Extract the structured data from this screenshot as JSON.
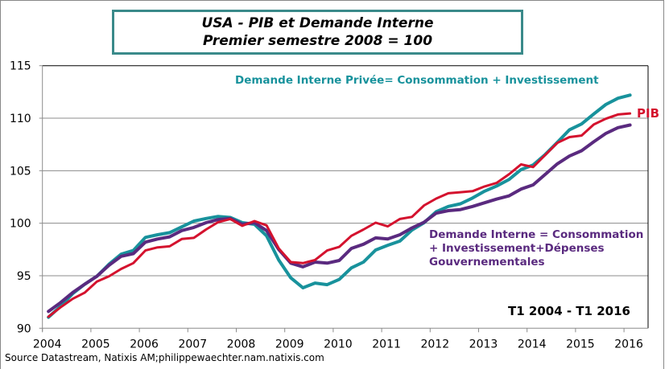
{
  "chart_data": {
    "type": "line",
    "title": [
      "USA - PIB et Demande Interne",
      "Premier semestre 2008 = 100"
    ],
    "xlabel": "",
    "ylabel": "",
    "x_ticks": [
      "2004",
      "2005",
      "2006",
      "2007",
      "2008",
      "2009",
      "2010",
      "2011",
      "2012",
      "2013",
      "2014",
      "2015",
      "2016"
    ],
    "y_ticks": [
      "90",
      "95",
      "100",
      "105",
      "110",
      "115"
    ],
    "ylim": [
      90,
      115
    ],
    "xlim": [
      2004,
      2016.5
    ],
    "grid": "horizontal",
    "period": "T1 2004 - T1 2016",
    "frequency": "quarterly",
    "series": [
      {
        "name": "Demande  Interne Privée=  Consommation  +  Investissement",
        "color": "#18929c",
        "values": [
          91.05,
          92.1,
          93.3,
          94.2,
          94.95,
          96.1,
          97.05,
          97.4,
          98.65,
          98.9,
          99.1,
          99.65,
          100.2,
          100.45,
          100.65,
          100.55,
          100.05,
          99.9,
          98.8,
          96.5,
          94.8,
          93.85,
          94.3,
          94.15,
          94.65,
          95.75,
          96.3,
          97.45,
          97.9,
          98.3,
          99.35,
          100.05,
          101.1,
          101.6,
          101.85,
          102.4,
          103.05,
          103.55,
          104.15,
          105.1,
          105.55,
          106.55,
          107.7,
          108.9,
          109.45,
          110.4,
          111.3,
          111.9,
          112.2
        ]
      },
      {
        "name": "PIB",
        "color": "#d4122e",
        "values": [
          91.1,
          92.0,
          92.8,
          93.4,
          94.45,
          94.95,
          95.65,
          96.2,
          97.4,
          97.7,
          97.8,
          98.5,
          98.6,
          99.4,
          100.1,
          100.4,
          99.75,
          100.2,
          99.8,
          97.6,
          96.3,
          96.2,
          96.5,
          97.4,
          97.75,
          98.8,
          99.4,
          100.05,
          99.7,
          100.4,
          100.6,
          101.7,
          102.35,
          102.85,
          102.95,
          103.05,
          103.5,
          103.85,
          104.65,
          105.6,
          105.35,
          106.5,
          107.65,
          108.2,
          108.35,
          109.4,
          109.95,
          110.35,
          110.45
        ]
      },
      {
        "name": "Demande  Interne = Consommation + Investissement+Dépenses Gouvernementales",
        "color": "#5a2a7f",
        "values": [
          91.6,
          92.45,
          93.4,
          94.2,
          94.95,
          96.0,
          96.85,
          97.1,
          98.2,
          98.5,
          98.7,
          99.3,
          99.6,
          100.05,
          100.35,
          100.45,
          99.9,
          100.05,
          99.3,
          97.5,
          96.2,
          95.85,
          96.3,
          96.2,
          96.45,
          97.6,
          98.0,
          98.6,
          98.5,
          98.9,
          99.55,
          100.1,
          100.95,
          101.2,
          101.3,
          101.6,
          101.95,
          102.3,
          102.6,
          103.25,
          103.65,
          104.65,
          105.65,
          106.4,
          106.9,
          107.75,
          108.55,
          109.1,
          109.35
        ]
      }
    ],
    "labels": {
      "private_demand": "Demande  Interne Privée=  Consommation  +  Investissement",
      "gdp": "PIB",
      "domestic_demand": [
        "Demande  Interne = Consommation",
        "+ Investissement+Dépenses",
        "Gouvernementales"
      ]
    }
  },
  "source": "Source Datastream, Natixis AM;philippewaechter.nam.natixis.com",
  "colors": {
    "title_border": "#3a8a8a",
    "grid": "#8c8c8c"
  }
}
